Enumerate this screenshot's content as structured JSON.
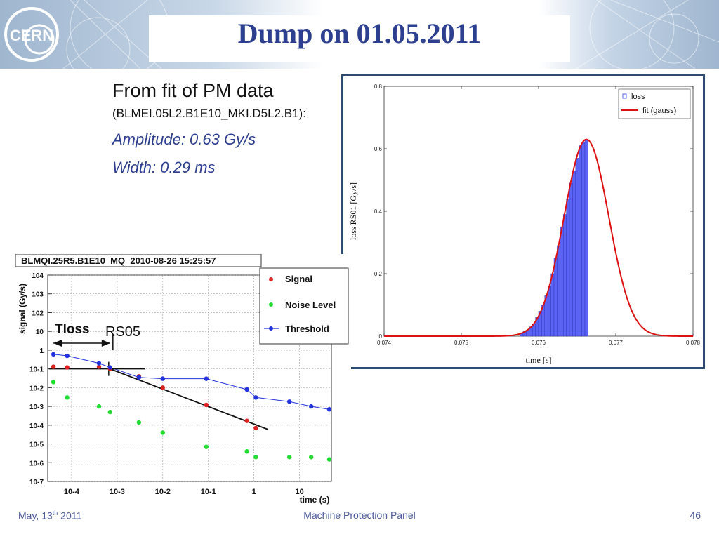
{
  "header": {
    "title": "Dump on 01.05.2011",
    "logo_text": "CERN"
  },
  "bullets": {
    "line1": "From fit of PM data",
    "line2": "(BLMEI.05L2.B1E10_MKI.D5L2.B1):",
    "line3": "Amplitude: 0.63 Gy/s",
    "line4": "Width: 0.29 ms"
  },
  "footer": {
    "date_prefix": "May, 13",
    "date_sup": "th",
    "date_suffix": " 2011",
    "center": "Machine Protection Panel",
    "page": "46"
  },
  "chart_data": [
    {
      "type": "bar",
      "title": "",
      "xlabel": "time [s]",
      "ylabel": "loss RS01 [Gy/s]",
      "xlim": [
        0.074,
        0.078
      ],
      "ylim": [
        0,
        0.8
      ],
      "x_ticks": [
        "0.074",
        "0.075",
        "0.076",
        "0.077",
        "0.078"
      ],
      "y_ticks": [
        "0",
        "0.2",
        "0.4",
        "0.6",
        "0.8"
      ],
      "legend_position": "top-right",
      "colors": {
        "loss": "#5b63f5",
        "fit": "#dd1111"
      },
      "series": [
        {
          "name": "loss",
          "kind": "histogram",
          "x": [
            0.07578,
            0.07582,
            0.07586,
            0.0759,
            0.07594,
            0.07598,
            0.07602,
            0.07606,
            0.0761,
            0.07614,
            0.07618,
            0.07622,
            0.07626,
            0.0763,
            0.07634,
            0.07638,
            0.07642,
            0.07646,
            0.0765,
            0.07654,
            0.07658,
            0.07662
          ],
          "values": [
            0.01,
            0.015,
            0.02,
            0.03,
            0.04,
            0.06,
            0.08,
            0.1,
            0.13,
            0.16,
            0.2,
            0.25,
            0.29,
            0.35,
            0.39,
            0.44,
            0.49,
            0.53,
            0.57,
            0.61,
            0.62,
            0.63
          ]
        },
        {
          "name": "fit (gauss)",
          "kind": "gaussian",
          "amplitude": 0.63,
          "mean": 0.07662,
          "sigma": 0.00029
        }
      ]
    },
    {
      "type": "scatter",
      "title": "BLMQI.25R5.B1E10_MQ_2010-08-26 15:25:57",
      "xlabel": "time (s)",
      "ylabel": "signal (Gy/s)",
      "x_scale": "log",
      "y_scale": "log",
      "xlim": [
        3e-05,
        50
      ],
      "ylim": [
        1e-07,
        10000
      ],
      "x_ticks": [
        "10-4",
        "10-3",
        "10-2",
        "10-1",
        "1",
        "10"
      ],
      "y_ticks": [
        "104",
        "103",
        "102",
        "10",
        "1",
        "10-1",
        "10-2",
        "10-3",
        "10-4",
        "10-5",
        "10-6",
        "10-7"
      ],
      "legend_position": "top-right",
      "annotations": [
        "Tloss",
        "RS05"
      ],
      "colors": {
        "Signal": "#dd2222",
        "Noise Level": "#22dd33",
        "Threshold": "#2233dd",
        "fit": "#111111"
      },
      "series": [
        {
          "name": "Signal",
          "x": [
            4e-05,
            8e-05,
            0.0004,
            0.0007,
            0.003,
            0.01,
            0.09,
            0.7,
            1.1
          ],
          "y": [
            0.13,
            0.12,
            0.13,
            0.1,
            0.04,
            0.01,
            0.0012,
            0.00017,
            7e-05
          ]
        },
        {
          "name": "Noise Level",
          "x": [
            4e-05,
            8e-05,
            0.0004,
            0.0007,
            0.003,
            0.01,
            0.09,
            0.7,
            1.1,
            6,
            18,
            45
          ],
          "y": [
            0.02,
            0.003,
            0.001,
            0.0005,
            0.00014,
            4e-05,
            7e-06,
            4e-06,
            2e-06,
            2e-06,
            2e-06,
            1.5e-06
          ]
        },
        {
          "name": "Threshold",
          "x": [
            4e-05,
            8e-05,
            0.0004,
            0.0007,
            0.003,
            0.01,
            0.09,
            0.7,
            1.1,
            6,
            18,
            45
          ],
          "y": [
            0.6,
            0.5,
            0.2,
            0.12,
            0.035,
            0.03,
            0.03,
            0.008,
            0.003,
            0.0018,
            0.001,
            0.0007
          ]
        }
      ]
    }
  ]
}
